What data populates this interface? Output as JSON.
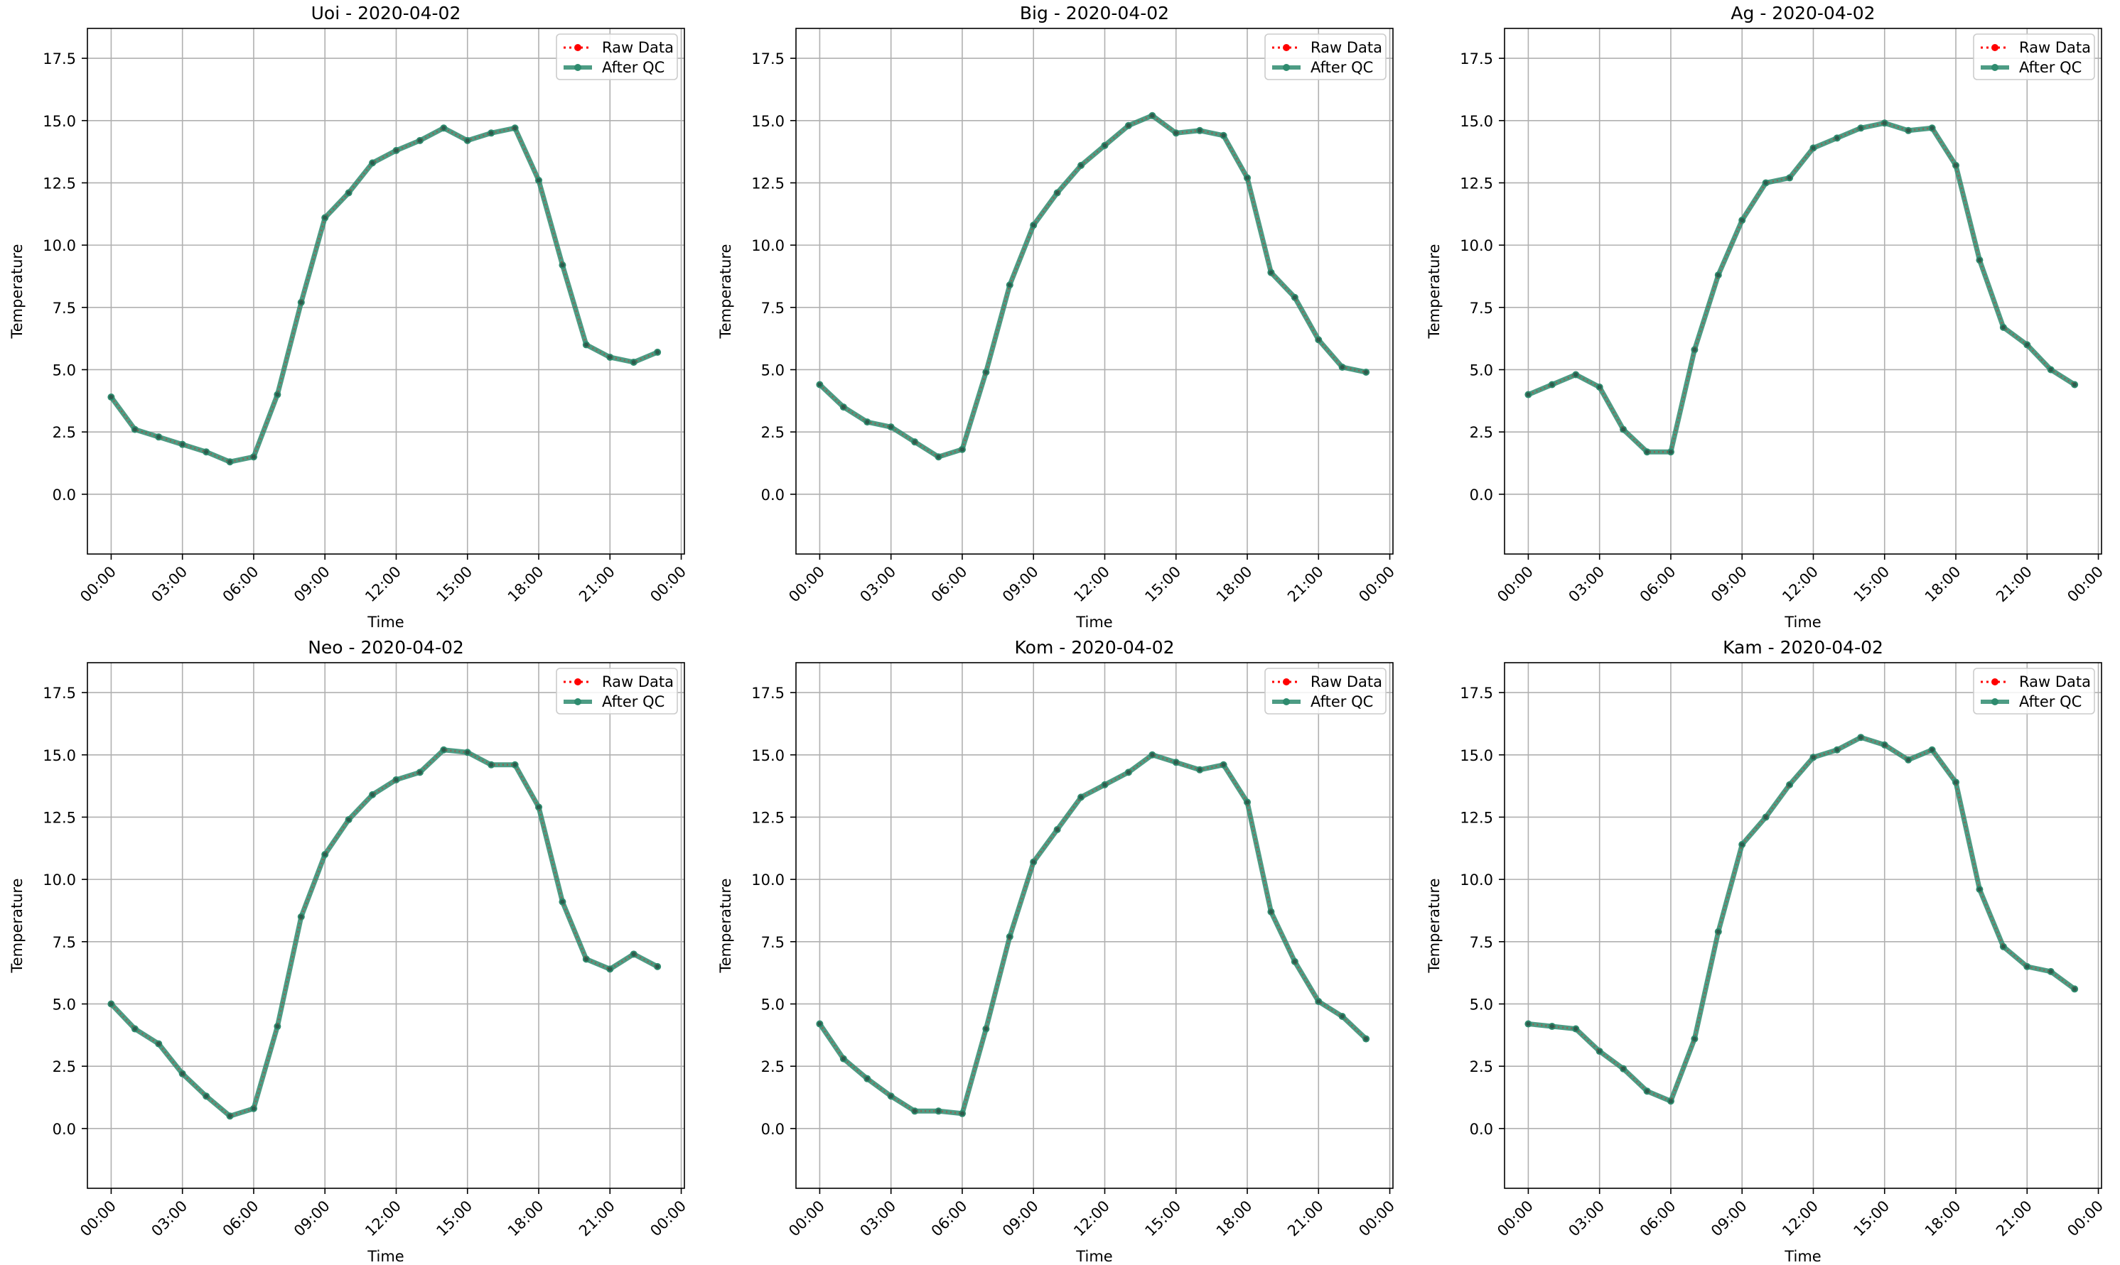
{
  "chart_data": [
    {
      "type": "line",
      "title": "Uoi - 2020-04-02",
      "xlabel": "Time",
      "ylabel": "Temperature",
      "xlim": [
        "2020-04-01 23:00",
        "2020-04-03 00:08"
      ],
      "ylim": [
        -2.4,
        18.7
      ],
      "yticks": [
        0.0,
        2.5,
        5.0,
        7.5,
        10.0,
        12.5,
        15.0,
        17.5
      ],
      "xticks": [
        "00:00",
        "03:00",
        "06:00",
        "09:00",
        "12:00",
        "15:00",
        "18:00",
        "21:00",
        "00:00"
      ],
      "grid": true,
      "legend": "top-right",
      "x": [
        "00:00",
        "01:00",
        "02:00",
        "03:00",
        "04:00",
        "05:00",
        "06:00",
        "07:00",
        "08:00",
        "09:00",
        "10:00",
        "11:00",
        "12:00",
        "13:00",
        "14:00",
        "15:00",
        "16:00",
        "17:00",
        "18:00",
        "19:00",
        "20:00",
        "21:00",
        "22:00",
        "23:00"
      ],
      "series": [
        {
          "name": "Raw Data",
          "color": "#ff0000",
          "values": [
            3.9,
            2.6,
            2.3,
            2.0,
            1.7,
            1.3,
            1.5,
            4.0,
            7.7,
            11.1,
            12.1,
            13.3,
            13.8,
            14.2,
            14.7,
            14.2,
            14.5,
            14.7,
            12.6,
            9.2,
            6.0,
            5.5,
            5.3,
            5.7
          ]
        },
        {
          "name": "After QC",
          "color": "#2e8b6e",
          "values": [
            3.9,
            2.6,
            2.3,
            2.0,
            1.7,
            1.3,
            1.5,
            4.0,
            7.7,
            11.1,
            12.1,
            13.3,
            13.8,
            14.2,
            14.7,
            14.2,
            14.5,
            14.7,
            12.6,
            9.2,
            6.0,
            5.5,
            5.3,
            5.7
          ]
        }
      ]
    },
    {
      "type": "line",
      "title": "Big - 2020-04-02",
      "xlabel": "Time",
      "ylabel": "Temperature",
      "xlim": [
        "2020-04-01 23:00",
        "2020-04-03 00:08"
      ],
      "ylim": [
        -2.4,
        18.7
      ],
      "yticks": [
        0.0,
        2.5,
        5.0,
        7.5,
        10.0,
        12.5,
        15.0,
        17.5
      ],
      "xticks": [
        "00:00",
        "03:00",
        "06:00",
        "09:00",
        "12:00",
        "15:00",
        "18:00",
        "21:00",
        "00:00"
      ],
      "grid": true,
      "legend": "top-right",
      "x": [
        "00:00",
        "01:00",
        "02:00",
        "03:00",
        "04:00",
        "05:00",
        "06:00",
        "07:00",
        "08:00",
        "09:00",
        "10:00",
        "11:00",
        "12:00",
        "13:00",
        "14:00",
        "15:00",
        "16:00",
        "17:00",
        "18:00",
        "19:00",
        "20:00",
        "21:00",
        "22:00",
        "23:00"
      ],
      "series": [
        {
          "name": "Raw Data",
          "color": "#ff0000",
          "values": [
            4.4,
            3.5,
            2.9,
            2.7,
            2.1,
            1.5,
            1.8,
            4.9,
            8.4,
            10.8,
            12.1,
            13.2,
            14.0,
            14.8,
            15.2,
            14.5,
            14.6,
            14.4,
            12.7,
            8.9,
            7.9,
            6.2,
            5.1,
            4.9
          ]
        },
        {
          "name": "After QC",
          "color": "#2e8b6e",
          "values": [
            4.4,
            3.5,
            2.9,
            2.7,
            2.1,
            1.5,
            1.8,
            4.9,
            8.4,
            10.8,
            12.1,
            13.2,
            14.0,
            14.8,
            15.2,
            14.5,
            14.6,
            14.4,
            12.7,
            8.9,
            7.9,
            6.2,
            5.1,
            4.9
          ]
        }
      ]
    },
    {
      "type": "line",
      "title": "Ag - 2020-04-02",
      "xlabel": "Time",
      "ylabel": "Temperature",
      "xlim": [
        "2020-04-01 23:00",
        "2020-04-03 00:08"
      ],
      "ylim": [
        -2.4,
        18.7
      ],
      "yticks": [
        0.0,
        2.5,
        5.0,
        7.5,
        10.0,
        12.5,
        15.0,
        17.5
      ],
      "xticks": [
        "00:00",
        "03:00",
        "06:00",
        "09:00",
        "12:00",
        "15:00",
        "18:00",
        "21:00",
        "00:00"
      ],
      "grid": true,
      "legend": "top-right",
      "x": [
        "00:00",
        "01:00",
        "02:00",
        "03:00",
        "04:00",
        "05:00",
        "06:00",
        "07:00",
        "08:00",
        "09:00",
        "10:00",
        "11:00",
        "12:00",
        "13:00",
        "14:00",
        "15:00",
        "16:00",
        "17:00",
        "18:00",
        "19:00",
        "20:00",
        "21:00",
        "22:00",
        "23:00"
      ],
      "series": [
        {
          "name": "Raw Data",
          "color": "#ff0000",
          "values": [
            4.0,
            4.4,
            4.8,
            4.3,
            2.6,
            1.7,
            1.7,
            5.8,
            8.8,
            11.0,
            12.5,
            12.7,
            13.9,
            14.3,
            14.7,
            14.9,
            14.6,
            14.7,
            13.2,
            9.4,
            6.7,
            6.0,
            5.0,
            4.4
          ]
        },
        {
          "name": "After QC",
          "color": "#2e8b6e",
          "values": [
            4.0,
            4.4,
            4.8,
            4.3,
            2.6,
            1.7,
            1.7,
            5.8,
            8.8,
            11.0,
            12.5,
            12.7,
            13.9,
            14.3,
            14.7,
            14.9,
            14.6,
            14.7,
            13.2,
            9.4,
            6.7,
            6.0,
            5.0,
            4.4
          ]
        }
      ]
    },
    {
      "type": "line",
      "title": "Neo - 2020-04-02",
      "xlabel": "Time",
      "ylabel": "Temperature",
      "xlim": [
        "2020-04-01 23:00",
        "2020-04-03 00:08"
      ],
      "ylim": [
        -2.4,
        18.7
      ],
      "yticks": [
        0.0,
        2.5,
        5.0,
        7.5,
        10.0,
        12.5,
        15.0,
        17.5
      ],
      "xticks": [
        "00:00",
        "03:00",
        "06:00",
        "09:00",
        "12:00",
        "15:00",
        "18:00",
        "21:00",
        "00:00"
      ],
      "grid": true,
      "legend": "top-right",
      "x": [
        "00:00",
        "01:00",
        "02:00",
        "03:00",
        "04:00",
        "05:00",
        "06:00",
        "07:00",
        "08:00",
        "09:00",
        "10:00",
        "11:00",
        "12:00",
        "13:00",
        "14:00",
        "15:00",
        "16:00",
        "17:00",
        "18:00",
        "19:00",
        "20:00",
        "21:00",
        "22:00",
        "23:00"
      ],
      "series": [
        {
          "name": "Raw Data",
          "color": "#ff0000",
          "values": [
            5.0,
            4.0,
            3.4,
            2.2,
            1.3,
            0.5,
            0.8,
            4.1,
            8.5,
            11.0,
            12.4,
            13.4,
            14.0,
            14.3,
            15.2,
            15.1,
            14.6,
            14.6,
            12.9,
            9.1,
            6.8,
            6.4,
            7.0,
            6.5
          ]
        },
        {
          "name": "After QC",
          "color": "#2e8b6e",
          "values": [
            5.0,
            4.0,
            3.4,
            2.2,
            1.3,
            0.5,
            0.8,
            4.1,
            8.5,
            11.0,
            12.4,
            13.4,
            14.0,
            14.3,
            15.2,
            15.1,
            14.6,
            14.6,
            12.9,
            9.1,
            6.8,
            6.4,
            7.0,
            6.5
          ]
        }
      ]
    },
    {
      "type": "line",
      "title": "Kom - 2020-04-02",
      "xlabel": "Time",
      "ylabel": "Temperature",
      "xlim": [
        "2020-04-01 23:00",
        "2020-04-03 00:08"
      ],
      "ylim": [
        -2.4,
        18.7
      ],
      "yticks": [
        0.0,
        2.5,
        5.0,
        7.5,
        10.0,
        12.5,
        15.0,
        17.5
      ],
      "xticks": [
        "00:00",
        "03:00",
        "06:00",
        "09:00",
        "12:00",
        "15:00",
        "18:00",
        "21:00",
        "00:00"
      ],
      "grid": true,
      "legend": "top-right",
      "x": [
        "00:00",
        "01:00",
        "02:00",
        "03:00",
        "04:00",
        "05:00",
        "06:00",
        "07:00",
        "08:00",
        "09:00",
        "10:00",
        "11:00",
        "12:00",
        "13:00",
        "14:00",
        "15:00",
        "16:00",
        "17:00",
        "18:00",
        "19:00",
        "20:00",
        "21:00",
        "22:00",
        "23:00"
      ],
      "series": [
        {
          "name": "Raw Data",
          "color": "#ff0000",
          "values": [
            4.2,
            2.8,
            2.0,
            1.3,
            0.7,
            0.7,
            0.6,
            4.0,
            7.7,
            10.7,
            12.0,
            13.3,
            13.8,
            14.3,
            15.0,
            14.7,
            14.4,
            14.6,
            13.1,
            8.7,
            6.7,
            5.1,
            4.5,
            3.6
          ]
        },
        {
          "name": "After QC",
          "color": "#2e8b6e",
          "values": [
            4.2,
            2.8,
            2.0,
            1.3,
            0.7,
            0.7,
            0.6,
            4.0,
            7.7,
            10.7,
            12.0,
            13.3,
            13.8,
            14.3,
            15.0,
            14.7,
            14.4,
            14.6,
            13.1,
            8.7,
            6.7,
            5.1,
            4.5,
            3.6
          ]
        }
      ]
    },
    {
      "type": "line",
      "title": "Kam - 2020-04-02",
      "xlabel": "Time",
      "ylabel": "Temperature",
      "xlim": [
        "2020-04-01 23:00",
        "2020-04-03 00:08"
      ],
      "ylim": [
        -2.4,
        18.7
      ],
      "yticks": [
        0.0,
        2.5,
        5.0,
        7.5,
        10.0,
        12.5,
        15.0,
        17.5
      ],
      "xticks": [
        "00:00",
        "03:00",
        "06:00",
        "09:00",
        "12:00",
        "15:00",
        "18:00",
        "21:00",
        "00:00"
      ],
      "grid": true,
      "legend": "top-right",
      "x": [
        "00:00",
        "01:00",
        "02:00",
        "03:00",
        "04:00",
        "05:00",
        "06:00",
        "07:00",
        "08:00",
        "09:00",
        "10:00",
        "11:00",
        "12:00",
        "13:00",
        "14:00",
        "15:00",
        "16:00",
        "17:00",
        "18:00",
        "19:00",
        "20:00",
        "21:00",
        "22:00",
        "23:00"
      ],
      "series": [
        {
          "name": "Raw Data",
          "color": "#ff0000",
          "values": [
            4.2,
            4.1,
            4.0,
            3.1,
            2.4,
            1.5,
            1.1,
            3.6,
            7.9,
            11.4,
            12.5,
            13.8,
            14.9,
            15.2,
            15.7,
            15.4,
            14.8,
            15.2,
            13.9,
            9.6,
            7.3,
            6.5,
            6.3,
            5.6
          ]
        },
        {
          "name": "After QC",
          "color": "#2e8b6e",
          "values": [
            4.2,
            4.1,
            4.0,
            3.1,
            2.4,
            1.5,
            1.1,
            3.6,
            7.9,
            11.4,
            12.5,
            13.8,
            14.9,
            15.2,
            15.7,
            15.4,
            14.8,
            15.2,
            13.9,
            9.6,
            7.3,
            6.5,
            6.3,
            5.6
          ]
        }
      ]
    }
  ]
}
